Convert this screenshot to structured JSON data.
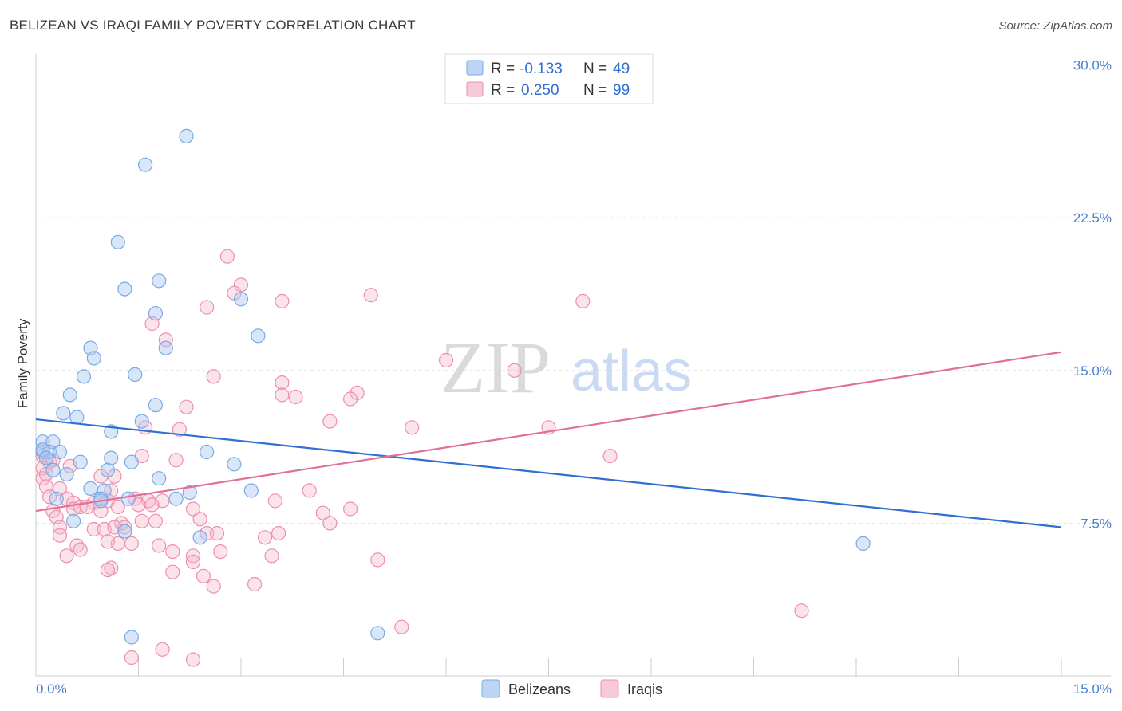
{
  "title": "BELIZEAN VS IRAQI FAMILY POVERTY CORRELATION CHART",
  "source": "Source: ZipAtlas.com",
  "watermark": {
    "zip": "ZIP",
    "atlas": "atlas"
  },
  "legend_top": [
    {
      "r_label": "R =",
      "r_value": "-0.133",
      "n_label": "N =",
      "n_value": "49",
      "color": "#a8c8f0"
    },
    {
      "r_label": "R =",
      "r_value": "0.250",
      "n_label": "N =",
      "n_value": "99",
      "color": "#f5b8ca"
    }
  ],
  "chart_data": {
    "type": "scatter",
    "ylabel": "Family Poverty",
    "xlim": [
      0,
      15
    ],
    "ylim": [
      0,
      31
    ],
    "x_tick_labels": [
      "0.0%",
      "15.0%"
    ],
    "y_ticks": [
      7.5,
      15.0,
      22.5,
      30.0
    ],
    "y_tick_labels": [
      "7.5%",
      "15.0%",
      "22.5%",
      "30.0%"
    ],
    "colors": {
      "Belizeans": "#7aaae6",
      "Iraqis": "#ee8fae",
      "belizean_line": "#2f6fd1",
      "iraqi_line": "#e0709a"
    },
    "series": [
      {
        "name": "Belizeans",
        "trend": {
          "x": [
            0,
            15
          ],
          "y": [
            12.6,
            7.3
          ]
        },
        "points": [
          [
            2.2,
            26.5
          ],
          [
            1.6,
            25.1
          ],
          [
            1.2,
            21.3
          ],
          [
            1.3,
            19.0
          ],
          [
            1.8,
            19.4
          ],
          [
            3.0,
            18.5
          ],
          [
            1.75,
            17.8
          ],
          [
            3.25,
            16.7
          ],
          [
            0.8,
            16.1
          ],
          [
            1.9,
            16.1
          ],
          [
            0.85,
            15.6
          ],
          [
            1.45,
            14.8
          ],
          [
            0.7,
            14.7
          ],
          [
            0.5,
            13.8
          ],
          [
            1.75,
            13.3
          ],
          [
            0.4,
            12.9
          ],
          [
            0.6,
            12.7
          ],
          [
            1.55,
            12.5
          ],
          [
            1.1,
            12.0
          ],
          [
            0.1,
            11.5
          ],
          [
            0.25,
            11.5
          ],
          [
            0.1,
            11.0
          ],
          [
            0.2,
            11.0
          ],
          [
            0.1,
            11.1
          ],
          [
            0.35,
            11.0
          ],
          [
            2.5,
            11.0
          ],
          [
            0.15,
            10.7
          ],
          [
            0.65,
            10.5
          ],
          [
            1.4,
            10.5
          ],
          [
            2.9,
            10.4
          ],
          [
            0.25,
            10.1
          ],
          [
            1.05,
            10.1
          ],
          [
            1.1,
            10.7
          ],
          [
            0.45,
            9.9
          ],
          [
            1.8,
            9.7
          ],
          [
            0.8,
            9.2
          ],
          [
            1.0,
            9.1
          ],
          [
            0.95,
            8.7
          ],
          [
            2.25,
            9.0
          ],
          [
            3.15,
            9.1
          ],
          [
            0.3,
            8.7
          ],
          [
            0.95,
            8.6
          ],
          [
            1.35,
            8.7
          ],
          [
            2.05,
            8.7
          ],
          [
            0.55,
            7.6
          ],
          [
            1.3,
            7.1
          ],
          [
            2.4,
            6.8
          ],
          [
            12.1,
            6.5
          ],
          [
            1.4,
            1.9
          ],
          [
            5.0,
            2.1
          ]
        ]
      },
      {
        "name": "Iraqis",
        "trend": {
          "x": [
            0,
            15
          ],
          "y": [
            8.1,
            15.9
          ]
        },
        "points": [
          [
            2.8,
            20.6
          ],
          [
            3.0,
            19.2
          ],
          [
            2.9,
            18.8
          ],
          [
            4.9,
            18.7
          ],
          [
            3.6,
            18.4
          ],
          [
            8.0,
            18.4
          ],
          [
            2.5,
            18.1
          ],
          [
            1.7,
            17.3
          ],
          [
            1.9,
            16.5
          ],
          [
            6.0,
            15.5
          ],
          [
            2.6,
            14.7
          ],
          [
            7.0,
            15.0
          ],
          [
            3.6,
            14.4
          ],
          [
            4.7,
            13.9
          ],
          [
            3.6,
            13.8
          ],
          [
            3.8,
            13.7
          ],
          [
            4.6,
            13.6
          ],
          [
            2.2,
            13.2
          ],
          [
            4.3,
            12.5
          ],
          [
            1.6,
            12.2
          ],
          [
            2.1,
            12.1
          ],
          [
            5.5,
            12.2
          ],
          [
            7.5,
            12.2
          ],
          [
            0.1,
            10.8
          ],
          [
            0.2,
            10.5
          ],
          [
            0.25,
            10.6
          ],
          [
            0.1,
            10.2
          ],
          [
            0.5,
            10.3
          ],
          [
            1.55,
            10.8
          ],
          [
            2.05,
            10.6
          ],
          [
            8.4,
            10.8
          ],
          [
            0.1,
            9.7
          ],
          [
            0.15,
            9.3
          ],
          [
            0.35,
            9.2
          ],
          [
            0.95,
            9.8
          ],
          [
            1.15,
            9.8
          ],
          [
            1.1,
            9.1
          ],
          [
            4.0,
            9.1
          ],
          [
            0.2,
            8.8
          ],
          [
            0.45,
            8.7
          ],
          [
            0.55,
            8.5
          ],
          [
            0.85,
            8.5
          ],
          [
            1.05,
            8.6
          ],
          [
            1.45,
            8.7
          ],
          [
            1.65,
            8.6
          ],
          [
            1.85,
            8.6
          ],
          [
            3.5,
            8.6
          ],
          [
            0.55,
            8.2
          ],
          [
            0.25,
            8.1
          ],
          [
            0.65,
            8.3
          ],
          [
            0.75,
            8.3
          ],
          [
            1.2,
            8.3
          ],
          [
            1.5,
            8.4
          ],
          [
            2.3,
            8.2
          ],
          [
            1.7,
            8.4
          ],
          [
            0.95,
            8.1
          ],
          [
            4.2,
            8.0
          ],
          [
            4.6,
            8.2
          ],
          [
            0.3,
            7.8
          ],
          [
            1.25,
            7.5
          ],
          [
            1.55,
            7.6
          ],
          [
            1.75,
            7.6
          ],
          [
            2.4,
            7.7
          ],
          [
            4.3,
            7.5
          ],
          [
            0.35,
            7.3
          ],
          [
            0.85,
            7.2
          ],
          [
            1.0,
            7.2
          ],
          [
            1.15,
            7.3
          ],
          [
            1.3,
            7.3
          ],
          [
            0.35,
            6.9
          ],
          [
            2.5,
            7.0
          ],
          [
            2.65,
            7.0
          ],
          [
            3.55,
            7.0
          ],
          [
            3.35,
            6.8
          ],
          [
            1.2,
            6.5
          ],
          [
            1.05,
            6.6
          ],
          [
            1.4,
            6.5
          ],
          [
            1.8,
            6.4
          ],
          [
            0.6,
            6.4
          ],
          [
            0.65,
            6.2
          ],
          [
            2.0,
            6.1
          ],
          [
            2.7,
            6.1
          ],
          [
            0.45,
            5.9
          ],
          [
            2.3,
            5.9
          ],
          [
            3.45,
            5.9
          ],
          [
            5.0,
            5.7
          ],
          [
            2.3,
            5.6
          ],
          [
            1.1,
            5.3
          ],
          [
            1.05,
            5.2
          ],
          [
            2.0,
            5.1
          ],
          [
            2.45,
            4.9
          ],
          [
            3.2,
            4.5
          ],
          [
            2.6,
            4.4
          ],
          [
            11.2,
            3.2
          ],
          [
            5.35,
            2.4
          ],
          [
            1.85,
            1.3
          ],
          [
            1.4,
            0.9
          ],
          [
            2.3,
            0.8
          ],
          [
            0.15,
            9.9
          ]
        ]
      }
    ]
  }
}
